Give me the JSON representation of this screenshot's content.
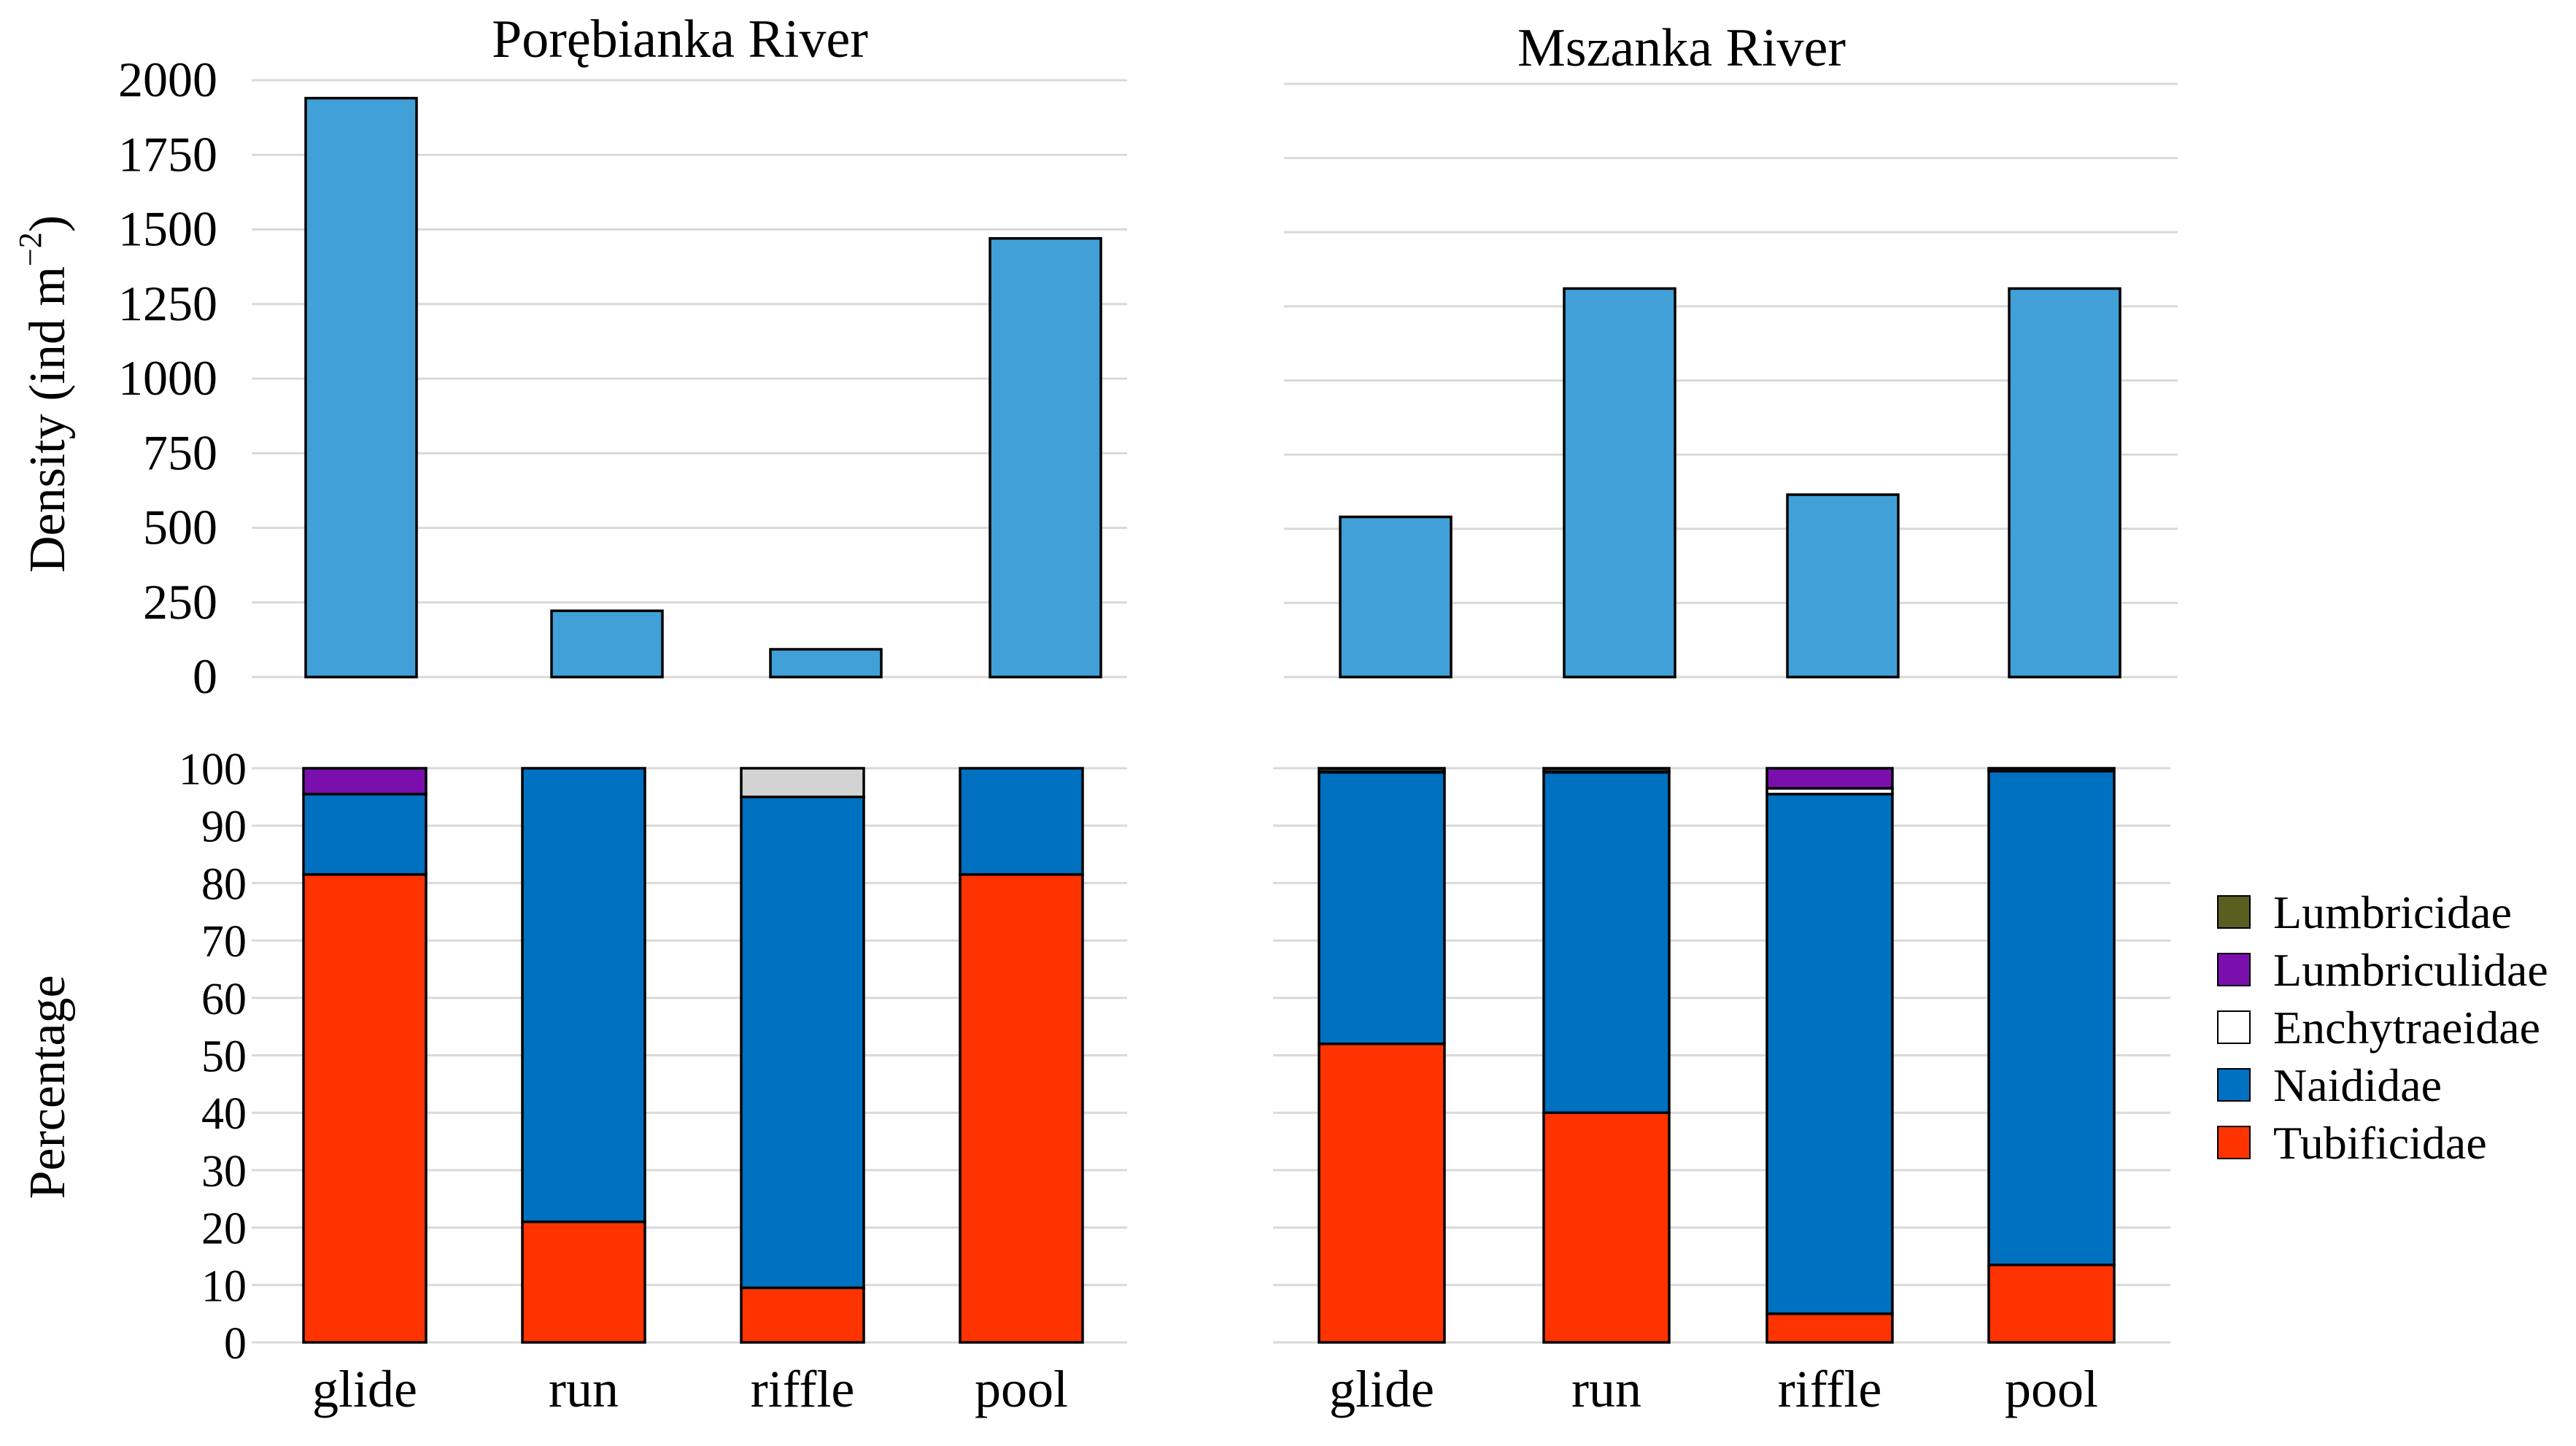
{
  "chart_data": [
    {
      "id": "density-porebianka",
      "type": "bar",
      "title": "Porębianka River",
      "xlabel": "",
      "ylabel": "Density (ind m−2)",
      "ylabel_base": "Density (ind m",
      "ylabel_sup": "−2",
      "ylabel_close": ")",
      "categories": [
        "glide",
        "run",
        "riffle",
        "pool"
      ],
      "values": [
        1940,
        222,
        93,
        1470
      ],
      "ylim": [
        0,
        2000
      ],
      "yticks": [
        0,
        250,
        500,
        750,
        1000,
        1250,
        1500,
        1750,
        2000
      ],
      "ytick_labels": [
        "0",
        "250",
        "500",
        "750",
        "1000",
        "1250",
        "1500",
        "1750",
        "2000"
      ],
      "grid": true,
      "color": "#41a0d7"
    },
    {
      "id": "density-mszanka",
      "type": "bar",
      "title": "Mszanka River",
      "xlabel": "",
      "ylabel": "",
      "categories": [
        "glide",
        "run",
        "riffle",
        "pool"
      ],
      "values": [
        540,
        1310,
        615,
        1310
      ],
      "ylim": [
        0,
        2000
      ],
      "grid": true,
      "color": "#41a0d7"
    },
    {
      "id": "percentage-porebianka",
      "type": "bar",
      "stacked": true,
      "title": "",
      "ylabel": "Percentage",
      "categories": [
        "glide",
        "run",
        "riffle",
        "pool"
      ],
      "ylim": [
        0,
        100
      ],
      "yticks": [
        0,
        10,
        20,
        30,
        40,
        50,
        60,
        70,
        80,
        90,
        100
      ],
      "ytick_labels": [
        "0",
        "10",
        "20",
        "30",
        "40",
        "50",
        "60",
        "70",
        "80",
        "90",
        "100"
      ],
      "grid": true,
      "series": [
        {
          "name": "Tubificidae",
          "values": [
            81.5,
            21.0,
            9.5,
            81.5
          ]
        },
        {
          "name": "Naididae",
          "values": [
            14.0,
            79.0,
            85.5,
            18.5
          ]
        },
        {
          "name": "Enchytraeidae",
          "values": [
            0,
            0,
            5.0,
            0
          ]
        },
        {
          "name": "Lumbriculidae",
          "values": [
            4.5,
            0,
            0,
            0
          ]
        },
        {
          "name": "Lumbricidae",
          "values": [
            0,
            0,
            0,
            0
          ]
        }
      ]
    },
    {
      "id": "percentage-mszanka",
      "type": "bar",
      "stacked": true,
      "title": "",
      "ylabel": "",
      "categories": [
        "glide",
        "run",
        "riffle",
        "pool"
      ],
      "ylim": [
        0,
        100
      ],
      "grid": true,
      "series": [
        {
          "name": "Tubificidae",
          "values": [
            52.0,
            40.0,
            5.0,
            13.5
          ]
        },
        {
          "name": "Naididae",
          "values": [
            47.3,
            59.3,
            90.5,
            86.0
          ]
        },
        {
          "name": "Enchytraeidae",
          "values": [
            0,
            0,
            1.0,
            0
          ]
        },
        {
          "name": "Lumbriculidae",
          "values": [
            0,
            0,
            3.5,
            0
          ]
        },
        {
          "name": "Lumbricidae",
          "values": [
            0.7,
            0.7,
            0,
            0.5
          ]
        }
      ]
    }
  ],
  "legend": {
    "placement": "right",
    "items": [
      {
        "name": "Lumbricidae",
        "color": "#5a5e1f"
      },
      {
        "name": "Lumbriculidae",
        "color": "#7b0fae"
      },
      {
        "name": "Enchytraeidae",
        "color": "#ffffff"
      },
      {
        "name": "Naididae",
        "color": "#0070c0"
      },
      {
        "name": "Tubificidae",
        "color": "#ff3300"
      }
    ]
  },
  "colors": {
    "density_bar": "#41a0d7",
    "enchytraeidae_porebianka": "#d3d3d3",
    "lumbricidae_mszanka": "#1f2a1f",
    "gridline": "#d9d9d9",
    "bar_outline": "#000000"
  }
}
